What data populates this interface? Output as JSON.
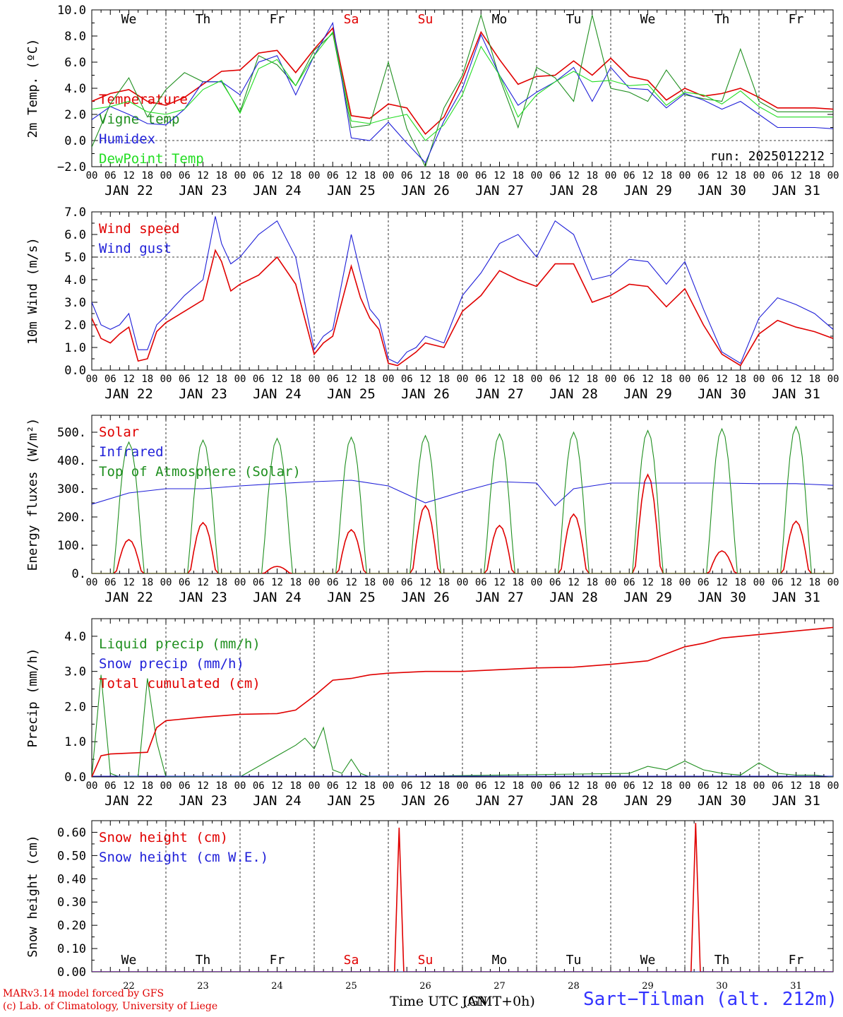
{
  "footer": {
    "model_line": "MARv3.14 model forced by GFS",
    "lab_line": "(c) Lab. of Climatology, University of Liege",
    "station": "Sart−Tilman (alt. 212m)"
  },
  "colors": {
    "red": "#e00000",
    "green": "#1f8f1f",
    "blue": "#1f1fd8",
    "light_green": "#22dd22",
    "axis": "#000000"
  },
  "common": {
    "hour_ticks": [
      "00",
      "06",
      "12",
      "18"
    ],
    "date_labels": [
      "JAN 22",
      "JAN 23",
      "JAN 24",
      "JAN 25",
      "JAN 26",
      "JAN 27",
      "JAN 28",
      "JAN 29",
      "JAN 30",
      "JAN 31"
    ],
    "weekdays": [
      "We",
      "Th",
      "Fr",
      "Sa",
      "Su",
      "Mo",
      "Tu",
      "We",
      "Th",
      "Fr"
    ],
    "weekend_days": [
      "Sa",
      "Su"
    ],
    "day_numbers": [
      "22",
      "23",
      "24",
      "25",
      "26",
      "27",
      "28",
      "29",
      "30",
      "31"
    ],
    "xlabel": "Time UTC (GMT+0h)",
    "xlabel_overlap": "JAN"
  },
  "chart_data": [
    {
      "id": "temperature",
      "type": "line",
      "ylabel": "2m Temp. (ºC)",
      "ylim": [
        -2,
        10
      ],
      "yticks": [
        -2.0,
        0.0,
        2.0,
        4.0,
        6.0,
        8.0,
        10.0
      ],
      "ytick_labels": [
        "−2.0",
        "0.0",
        "2.0",
        "4.0",
        "6.0",
        "8.0",
        "10.0"
      ],
      "ref_line": 0,
      "annotation": "run: 2025012212",
      "x_unit": "hours since JAN 22 00 UTC",
      "series": [
        {
          "name": "Temperature",
          "color": "red",
          "x": [
            0,
            6,
            12,
            18,
            24,
            30,
            36,
            42,
            48,
            54,
            60,
            66,
            72,
            78,
            84,
            90,
            96,
            102,
            108,
            114,
            120,
            126,
            132,
            138,
            144,
            150,
            156,
            162,
            168,
            174,
            180,
            186,
            192,
            198,
            204,
            210,
            216,
            222,
            228,
            234,
            240
          ],
          "y": [
            3.0,
            3.6,
            3.9,
            3.0,
            2.7,
            3.3,
            4.3,
            5.3,
            5.4,
            6.7,
            6.9,
            5.2,
            7.0,
            8.6,
            1.9,
            1.7,
            2.8,
            2.5,
            0.5,
            1.8,
            4.7,
            8.3,
            6.2,
            4.3,
            4.9,
            5.0,
            6.1,
            5.0,
            6.3,
            4.9,
            4.6,
            3.1,
            4.0,
            3.4,
            3.6,
            4.0,
            3.3,
            2.5,
            2.5,
            2.5,
            2.4
          ]
        },
        {
          "name": "Vigne temp",
          "color": "green",
          "x": [
            0,
            6,
            12,
            18,
            24,
            30,
            36,
            42,
            48,
            54,
            60,
            66,
            72,
            78,
            84,
            90,
            96,
            102,
            108,
            114,
            120,
            126,
            132,
            138,
            144,
            150,
            156,
            162,
            168,
            174,
            180,
            186,
            192,
            198,
            204,
            210,
            216,
            222,
            228,
            234,
            240
          ],
          "y": [
            -0.5,
            2.8,
            4.8,
            1.8,
            3.9,
            5.2,
            4.5,
            4.5,
            2.2,
            6.5,
            5.8,
            4.2,
            6.9,
            8.2,
            1.0,
            1.2,
            6.0,
            0.9,
            -2.0,
            2.5,
            5.0,
            9.6,
            4.8,
            1.0,
            5.6,
            4.8,
            3.0,
            9.6,
            4.0,
            3.7,
            3.0,
            5.4,
            3.5,
            3.2,
            3.0,
            7.0,
            3.0,
            2.2,
            2.2,
            2.2,
            2.2
          ]
        },
        {
          "name": "Humidex",
          "color": "blue",
          "x": [
            0,
            6,
            12,
            18,
            24,
            30,
            36,
            42,
            48,
            54,
            60,
            66,
            72,
            78,
            84,
            90,
            96,
            102,
            108,
            114,
            120,
            126,
            132,
            138,
            144,
            150,
            156,
            162,
            168,
            174,
            180,
            186,
            192,
            198,
            204,
            210,
            216,
            222,
            228,
            234,
            240
          ],
          "y": [
            1.6,
            2.6,
            2.0,
            1.3,
            1.2,
            2.4,
            4.5,
            4.5,
            3.5,
            6.0,
            6.5,
            3.5,
            6.5,
            9.0,
            0.2,
            0.0,
            1.4,
            -0.2,
            -1.7,
            1.5,
            4.0,
            8.1,
            5.0,
            2.7,
            3.7,
            4.5,
            5.6,
            3.0,
            5.6,
            4.0,
            3.9,
            2.5,
            3.6,
            3.1,
            2.4,
            3.0,
            2.0,
            1.0,
            1.0,
            1.0,
            0.9
          ]
        },
        {
          "name": "DewPoint Temp",
          "color": "light_green",
          "x": [
            0,
            6,
            12,
            18,
            24,
            30,
            36,
            42,
            48,
            54,
            60,
            66,
            72,
            78,
            84,
            90,
            96,
            102,
            108,
            114,
            120,
            126,
            132,
            138,
            144,
            150,
            156,
            162,
            168,
            174,
            180,
            186,
            192,
            198,
            204,
            210,
            216,
            222,
            228,
            234,
            240
          ],
          "y": [
            2.4,
            2.6,
            3.0,
            2.2,
            2.0,
            2.4,
            3.9,
            4.6,
            2.1,
            5.5,
            6.2,
            4.2,
            6.5,
            8.3,
            1.5,
            1.3,
            1.7,
            2.0,
            0.0,
            1.2,
            3.5,
            7.2,
            5.0,
            1.8,
            3.5,
            4.5,
            5.3,
            4.5,
            4.6,
            4.2,
            4.3,
            2.7,
            3.7,
            3.5,
            2.8,
            3.8,
            2.6,
            1.8,
            1.8,
            1.8,
            1.8
          ]
        }
      ]
    },
    {
      "id": "wind",
      "type": "line",
      "ylabel": "10m Wind (m/s)",
      "ylim": [
        0,
        7
      ],
      "yticks": [
        0,
        1,
        2,
        3,
        4,
        5,
        6,
        7
      ],
      "ytick_labels": [
        "0.0",
        "1.0",
        "2.0",
        "3.0",
        "4.0",
        "5.0",
        "6.0",
        "7.0"
      ],
      "ref_line": 5,
      "x_unit": "hours since JAN 22 00 UTC",
      "series": [
        {
          "name": "Wind speed",
          "color": "red",
          "x": [
            0,
            3,
            6,
            9,
            12,
            15,
            18,
            21,
            24,
            30,
            36,
            40,
            42,
            45,
            48,
            54,
            60,
            66,
            72,
            75,
            78,
            84,
            87,
            90,
            93,
            96,
            99,
            102,
            105,
            108,
            114,
            120,
            126,
            132,
            138,
            144,
            150,
            156,
            162,
            168,
            174,
            180,
            186,
            192,
            198,
            204,
            210,
            216,
            222,
            228,
            234,
            240
          ],
          "y": [
            2.3,
            1.4,
            1.2,
            1.6,
            1.9,
            0.4,
            0.5,
            1.7,
            2.1,
            2.6,
            3.1,
            5.3,
            4.8,
            3.5,
            3.8,
            4.2,
            5.0,
            3.8,
            0.7,
            1.2,
            1.5,
            4.6,
            3.2,
            2.3,
            1.8,
            0.3,
            0.2,
            0.5,
            0.8,
            1.2,
            1.0,
            2.6,
            3.3,
            4.4,
            4.0,
            3.7,
            4.7,
            4.7,
            3.0,
            3.3,
            3.8,
            3.7,
            2.8,
            3.6,
            2.0,
            0.7,
            0.2,
            1.6,
            2.2,
            1.9,
            1.7,
            1.4
          ]
        },
        {
          "name": "Wind gust",
          "color": "blue",
          "x": [
            0,
            3,
            6,
            9,
            12,
            15,
            18,
            21,
            24,
            30,
            36,
            40,
            42,
            45,
            48,
            54,
            60,
            66,
            72,
            75,
            78,
            84,
            87,
            90,
            93,
            96,
            99,
            102,
            105,
            108,
            114,
            120,
            126,
            132,
            138,
            144,
            150,
            156,
            162,
            168,
            174,
            180,
            186,
            192,
            198,
            204,
            210,
            216,
            222,
            228,
            234,
            240
          ],
          "y": [
            3.0,
            2.0,
            1.8,
            2.0,
            2.5,
            0.9,
            0.9,
            2.0,
            2.4,
            3.3,
            4.0,
            6.8,
            5.6,
            4.7,
            5.0,
            6.0,
            6.6,
            5.0,
            0.9,
            1.5,
            1.8,
            6.0,
            4.3,
            2.7,
            2.2,
            0.5,
            0.3,
            0.8,
            1.0,
            1.5,
            1.2,
            3.3,
            4.3,
            5.6,
            6.0,
            5.0,
            6.6,
            6.0,
            4.0,
            4.2,
            4.9,
            4.8,
            3.8,
            4.8,
            2.7,
            0.8,
            0.3,
            2.3,
            3.2,
            2.9,
            2.5,
            1.8
          ]
        }
      ]
    },
    {
      "id": "energy",
      "type": "line",
      "ylabel": "Energy fluxes (W/m²)",
      "ylim": [
        0,
        560
      ],
      "yticks": [
        0,
        100,
        200,
        300,
        400,
        500
      ],
      "ytick_labels": [
        "0.",
        "100.",
        "200.",
        "300.",
        "400.",
        "500."
      ],
      "x_unit": "hours since JAN 22 00 UTC",
      "series": [
        {
          "name": "Solar",
          "color": "red",
          "peaks": [
            {
              "x": 12,
              "y": 120
            },
            {
              "x": 36,
              "y": 180
            },
            {
              "x": 60,
              "y": 25
            },
            {
              "x": 84,
              "y": 155
            },
            {
              "x": 108,
              "y": 240
            },
            {
              "x": 132,
              "y": 170
            },
            {
              "x": 156,
              "y": 210
            },
            {
              "x": 180,
              "y": 350
            },
            {
              "x": 204,
              "y": 80
            },
            {
              "x": 228,
              "y": 185
            }
          ]
        },
        {
          "name": "Infrared",
          "color": "blue",
          "x": [
            0,
            12,
            24,
            36,
            48,
            60,
            72,
            84,
            96,
            108,
            120,
            132,
            144,
            150,
            156,
            168,
            180,
            192,
            204,
            216,
            228,
            240
          ],
          "y": [
            245,
            285,
            300,
            300,
            310,
            318,
            325,
            330,
            310,
            250,
            290,
            325,
            320,
            240,
            300,
            320,
            320,
            320,
            320,
            318,
            318,
            312
          ]
        },
        {
          "name": "Top of Atmosphere (Solar)",
          "color": "green",
          "peaks": [
            {
              "x": 12,
              "y": 465
            },
            {
              "x": 36,
              "y": 472
            },
            {
              "x": 60,
              "y": 478
            },
            {
              "x": 84,
              "y": 482
            },
            {
              "x": 108,
              "y": 488
            },
            {
              "x": 132,
              "y": 494
            },
            {
              "x": 156,
              "y": 500
            },
            {
              "x": 180,
              "y": 506
            },
            {
              "x": 204,
              "y": 512
            },
            {
              "x": 228,
              "y": 520
            }
          ]
        }
      ]
    },
    {
      "id": "precip",
      "type": "line",
      "ylabel": "Precip (mm/h)",
      "ylim": [
        0,
        4.5
      ],
      "yticks": [
        0,
        1,
        2,
        3,
        4
      ],
      "ytick_labels": [
        "0.0",
        "1.0",
        "2.0",
        "3.0",
        "4.0"
      ],
      "x_unit": "hours since JAN 22 00 UTC",
      "series": [
        {
          "name": "Liquid precip (mm/h)",
          "color": "green",
          "x": [
            0,
            3,
            6,
            9,
            15,
            18,
            21,
            24,
            48,
            66,
            69,
            72,
            75,
            78,
            81,
            84,
            87,
            90,
            174,
            180,
            186,
            192,
            198,
            204,
            210,
            216,
            222,
            228,
            234,
            240
          ],
          "y": [
            0,
            2.9,
            0.1,
            0,
            0,
            2.8,
            1.0,
            0,
            0,
            0.9,
            1.1,
            0.8,
            1.4,
            0.2,
            0.1,
            0.5,
            0.1,
            0,
            0.1,
            0.3,
            0.2,
            0.45,
            0.2,
            0.1,
            0.05,
            0.4,
            0.1,
            0.05,
            0.05,
            0
          ]
        },
        {
          "name": "Snow precip (mm/h)",
          "color": "blue",
          "x": [
            0,
            240
          ],
          "y": [
            0.02,
            0.02
          ]
        },
        {
          "name": "Total cumulated (cm)",
          "color": "red",
          "x": [
            0,
            3,
            6,
            18,
            21,
            24,
            36,
            48,
            60,
            66,
            72,
            78,
            84,
            90,
            96,
            108,
            120,
            132,
            144,
            156,
            168,
            174,
            180,
            186,
            192,
            198,
            204,
            216,
            222,
            240
          ],
          "y": [
            0,
            0.6,
            0.65,
            0.7,
            1.4,
            1.6,
            1.7,
            1.78,
            1.8,
            1.9,
            2.3,
            2.75,
            2.8,
            2.9,
            2.95,
            3.0,
            3.0,
            3.05,
            3.1,
            3.12,
            3.2,
            3.25,
            3.3,
            3.5,
            3.7,
            3.8,
            3.95,
            4.05,
            4.1,
            4.25
          ]
        }
      ]
    },
    {
      "id": "snow",
      "type": "line",
      "ylabel": "Snow height (cm)",
      "ylim": [
        0,
        0.65
      ],
      "yticks": [
        0,
        0.1,
        0.2,
        0.3,
        0.4,
        0.5,
        0.6
      ],
      "ytick_labels": [
        "0.00",
        "0.10",
        "0.20",
        "0.30",
        "0.40",
        "0.50",
        "0.60"
      ],
      "x_unit": "hours since JAN 22 00 UTC",
      "series": [
        {
          "name": "Snow height (cm)",
          "color": "red",
          "x": [
            0,
            98,
            99.5,
            101,
            194,
            195.5,
            197,
            240
          ],
          "y": [
            0,
            0,
            0.62,
            0,
            0,
            0.64,
            0,
            0
          ]
        },
        {
          "name": "Snow height (cm W.E.)",
          "color": "blue",
          "x": [
            0,
            240
          ],
          "y": [
            0,
            0
          ]
        }
      ]
    }
  ]
}
